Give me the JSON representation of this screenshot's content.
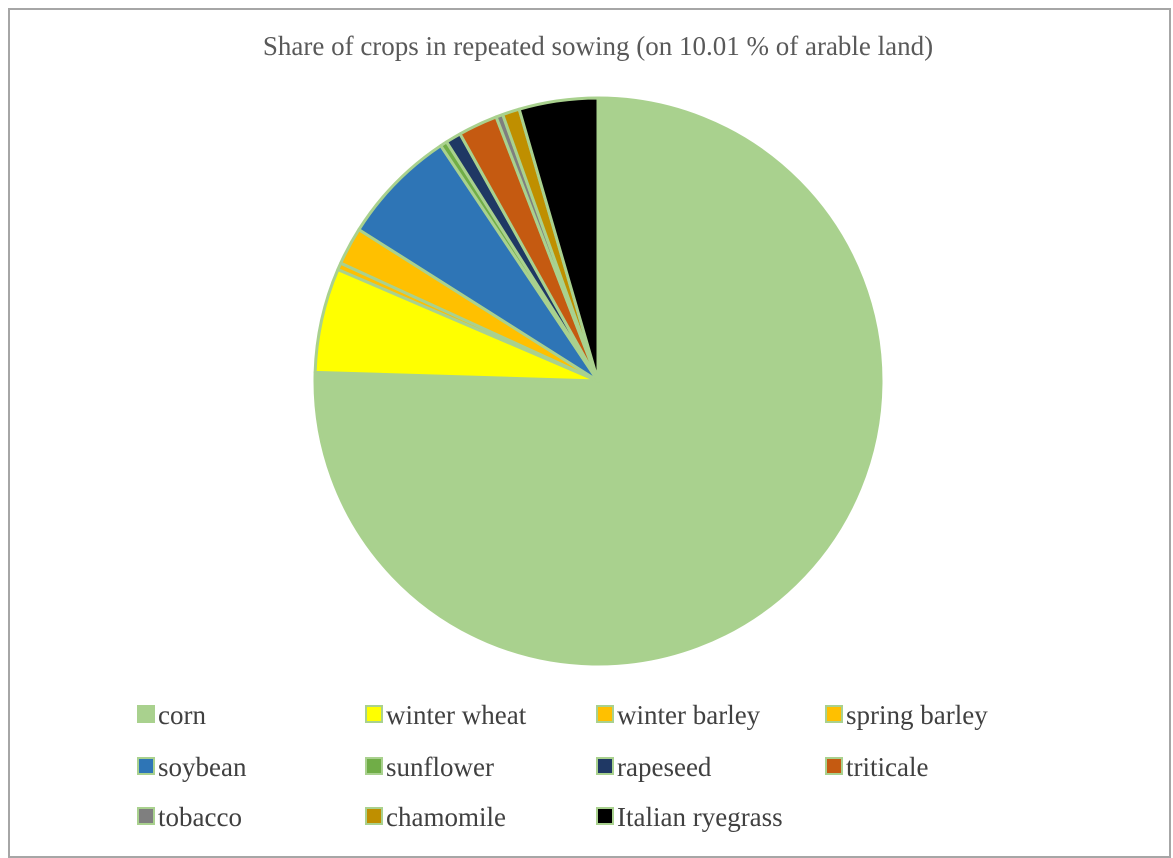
{
  "chart_data": {
    "type": "pie",
    "title": "Share of crops in repeated sowing (on 10.01 % of arable land)",
    "start_angle_deg": 0,
    "direction": "clockwise",
    "legend_position": "bottom",
    "slice_border_color": "#a9d18e",
    "slices": [
      {
        "label": "corn",
        "value": 77.3,
        "color": "#a9d18e"
      },
      {
        "label": "winter wheat",
        "value": 6.1,
        "color": "#ffff00"
      },
      {
        "label": "winter barley",
        "value": 0.4,
        "color": "#ffc000"
      },
      {
        "label": "spring barley",
        "value": 2.2,
        "color": "#ffc000"
      },
      {
        "label": "soybean",
        "value": 6.8,
        "color": "#2e75b6"
      },
      {
        "label": "sunflower",
        "value": 0.4,
        "color": "#70ad47"
      },
      {
        "label": "rapeseed",
        "value": 0.9,
        "color": "#1f3864"
      },
      {
        "label": "triticale",
        "value": 2.3,
        "color": "#c55a11"
      },
      {
        "label": "tobacco",
        "value": 0.4,
        "color": "#7f7f7f"
      },
      {
        "label": "chamomile",
        "value": 1.0,
        "color": "#bf8f00"
      },
      {
        "label": "Italian ryegrass",
        "value": 4.6,
        "color": "#000000"
      }
    ]
  }
}
